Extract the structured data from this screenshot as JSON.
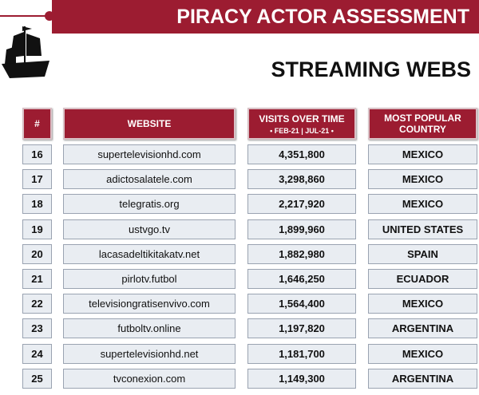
{
  "header": {
    "title": "PIRACY ACTOR ASSESSMENT",
    "subtitle": "STREAMING WEBS"
  },
  "table": {
    "columns": [
      "#",
      "WEBSITE",
      "VISITS OVER TIME",
      "MOST POPULAR COUNTRY"
    ],
    "column_note": "• FEB-21 | JUL-21 •",
    "rows": [
      [
        "16",
        "supertelevisionhd.com",
        "4,351,800",
        "MEXICO"
      ],
      [
        "17",
        "adictosalatele.com",
        "3,298,860",
        "MEXICO"
      ],
      [
        "18",
        "telegratis.org",
        "2,217,920",
        "MEXICO"
      ],
      [
        "19",
        "ustvgo.tv",
        "1,899,960",
        "UNITED STATES"
      ],
      [
        "20",
        "lacasadeltikitakatv.net",
        "1,882,980",
        "SPAIN"
      ],
      [
        "21",
        "pirlotv.futbol",
        "1,646,250",
        "ECUADOR"
      ],
      [
        "22",
        "televisiongratisenvivo.com",
        "1,564,400",
        "MEXICO"
      ],
      [
        "23",
        "futboltv.online",
        "1,197,820",
        "ARGENTINA"
      ],
      [
        "24",
        "supertelevisionhd.net",
        "1,181,700",
        "MEXICO"
      ],
      [
        "25",
        "tvconexion.com",
        "1,149,300",
        "ARGENTINA"
      ]
    ]
  }
}
